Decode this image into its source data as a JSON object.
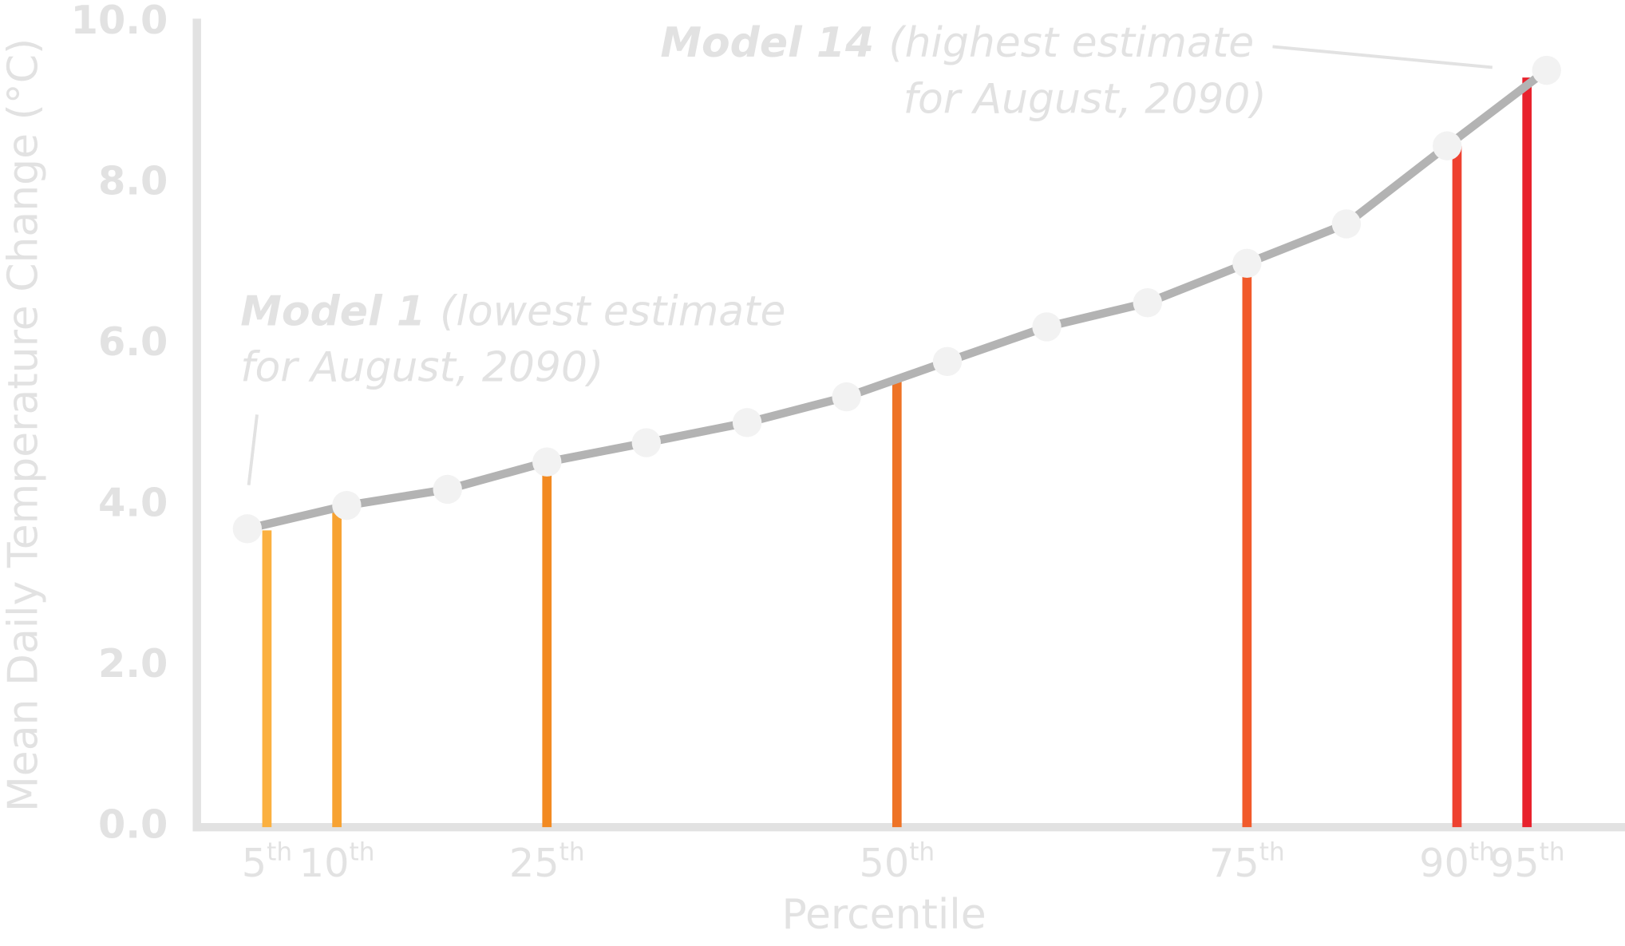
{
  "chart_data": {
    "type": "line",
    "x_label": "Percentile",
    "y_label": "Mean Daily Temperature Change (°C)",
    "x": [
      3.6,
      10.7,
      17.9,
      25,
      32.1,
      39.3,
      46.4,
      53.6,
      60.7,
      67.9,
      75,
      82.1,
      89.3,
      96.4
    ],
    "values": [
      3.71,
      4.0,
      4.2,
      4.54,
      4.78,
      5.03,
      5.35,
      5.79,
      6.22,
      6.52,
      7.01,
      7.5,
      8.47,
      9.41
    ],
    "line_color": "#b3b3b3",
    "marker_color": "#f2f2f2",
    "bars": {
      "x": [
        5,
        10,
        25,
        50,
        75,
        90,
        95
      ],
      "values": [
        3.69,
        3.97,
        4.42,
        5.6,
        7.0,
        8.47,
        9.32
      ],
      "colors": [
        "#fbb040",
        "#f7a232",
        "#f28a22",
        "#ee7326",
        "#f15a2b",
        "#ee4130",
        "#e8222d"
      ]
    },
    "xlim": [
      0,
      102
    ],
    "xticks": [
      {
        "value": 5,
        "label": "5",
        "sup": "th"
      },
      {
        "value": 10,
        "label": "10",
        "sup": "th"
      },
      {
        "value": 25,
        "label": "25",
        "sup": "th"
      },
      {
        "value": 50,
        "label": "50",
        "sup": "th"
      },
      {
        "value": 75,
        "label": "75",
        "sup": "th"
      },
      {
        "value": 90,
        "label": "90",
        "sup": "th"
      },
      {
        "value": 95,
        "label": "95",
        "sup": "th"
      }
    ],
    "ylim": [
      0,
      10
    ],
    "yticks": [
      {
        "value": 0,
        "label": "0.0"
      },
      {
        "value": 2,
        "label": "2.0"
      },
      {
        "value": 4,
        "label": "4.0"
      },
      {
        "value": 6,
        "label": "6.0"
      },
      {
        "value": 8,
        "label": "8.0"
      },
      {
        "value": 10,
        "label": "10.0"
      }
    ],
    "annotations": [
      {
        "bold": "Model 1",
        "text": "(lowest estimate",
        "line2": "for August, 2090)"
      },
      {
        "bold": "Model 14",
        "text": "(highest estimate",
        "line2": "for August, 2090)"
      }
    ]
  }
}
